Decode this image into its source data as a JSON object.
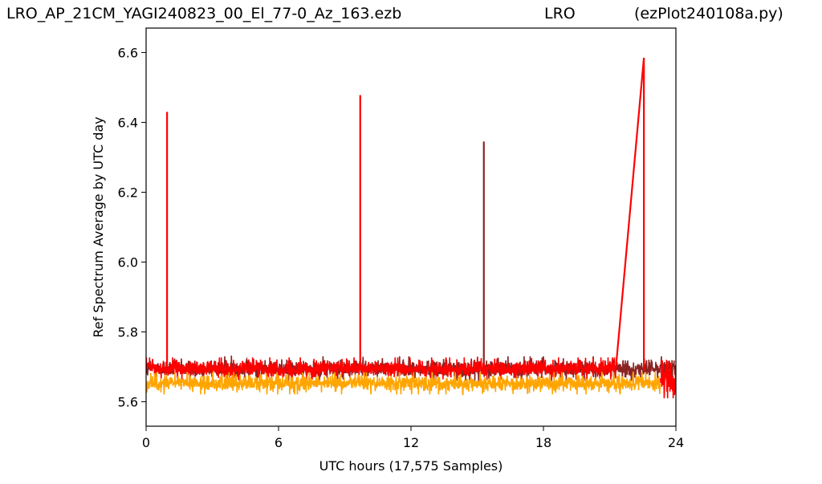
{
  "header": {
    "filename": "LRO_AP_21CM_YAGI240823_00_El_77-0_Az_163.ezb",
    "station": "LRO",
    "program": "(ezPlot240108a.py)"
  },
  "chart_data": {
    "type": "line",
    "xlabel": "UTC hours  (17,575 Samples)",
    "ylabel": "Ref Spectrum Average by UTC day",
    "xlim": [
      0,
      24
    ],
    "ylim": [
      5.53,
      6.67
    ],
    "xticks": [
      0,
      6,
      12,
      18,
      24
    ],
    "yticks": [
      5.6,
      5.8,
      6.0,
      6.2,
      6.4,
      6.6
    ],
    "ytick_labels": [
      "5.6",
      "5.8",
      "6.0",
      "6.2",
      "6.4",
      "6.6"
    ],
    "grid": false,
    "series": [
      {
        "color": "#8b2323",
        "segments": [
          {
            "x_range": [
              0,
              24
            ],
            "center": 5.695,
            "noise": 0.022,
            "upper": 5.74,
            "lower": 5.64
          }
        ],
        "spikes": [
          {
            "x": 15.3,
            "y": 6.345
          }
        ]
      },
      {
        "color": "#ff0000",
        "segments": [
          {
            "x_range": [
              0,
              21.3
            ],
            "center": 5.695,
            "noise": 0.02,
            "upper": 5.745,
            "lower": 5.59
          },
          {
            "x_range": [
              23.3,
              24
            ],
            "center": 5.66,
            "noise": 0.05,
            "upper": 5.72,
            "lower": 5.61
          }
        ],
        "spikes": [
          {
            "x": 0.95,
            "y": 6.43
          },
          {
            "x": 9.7,
            "y": 6.478
          }
        ],
        "ramp": {
          "x_from": 21.3,
          "y_from": 5.71,
          "x_to": 22.55,
          "y_to": 6.585
        }
      },
      {
        "color": "#ffa500",
        "segments": [
          {
            "x_range": [
              0,
              23.3
            ],
            "center": 5.653,
            "noise": 0.02,
            "upper": 5.695,
            "lower": 5.575
          }
        ],
        "spikes": []
      }
    ]
  }
}
